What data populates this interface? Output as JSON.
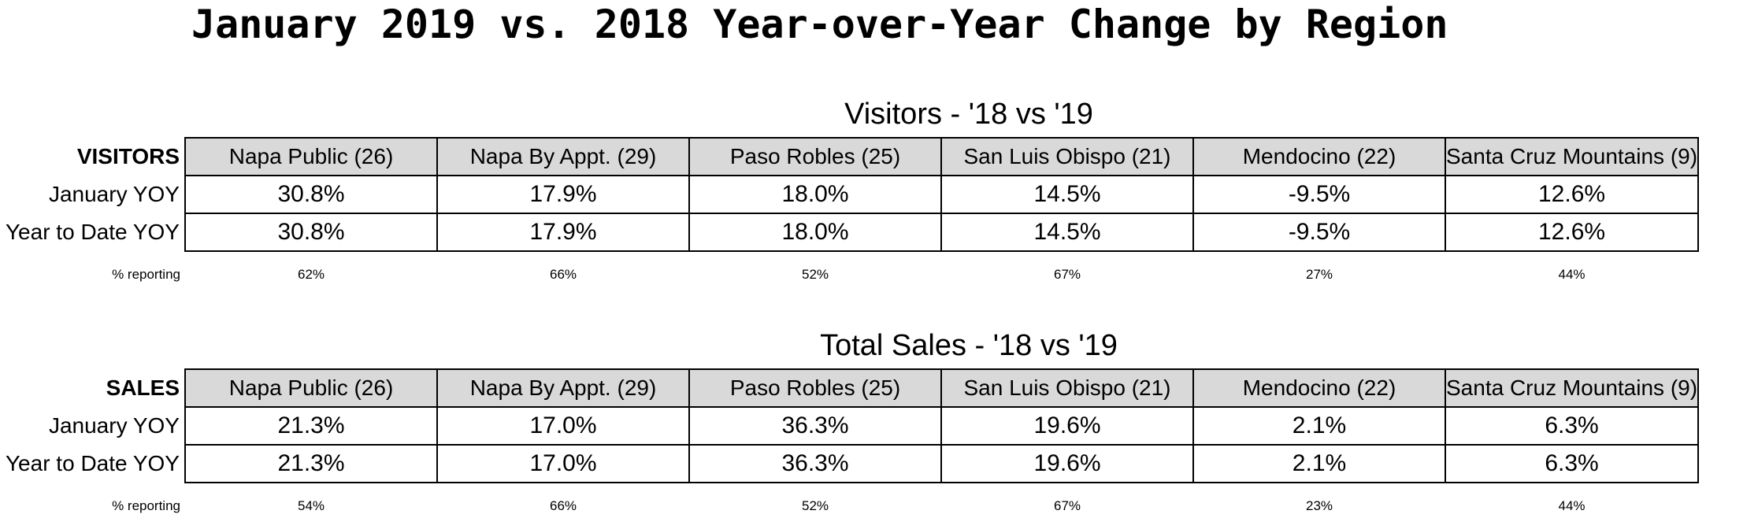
{
  "title": "January 2019 vs. 2018 Year-over-Year Change by Region",
  "regions": [
    "Napa Public (26)",
    "Napa By Appt. (29)",
    "Paso Robles (25)",
    "San Luis Obispo (21)",
    "Mendocino (22)",
    "Santa Cruz Mountains (9)"
  ],
  "visitors": {
    "section_title": "Visitors - '18 vs '19",
    "corner_label": "VISITORS",
    "rows": [
      {
        "label": "January YOY",
        "values": [
          "30.8%",
          "17.9%",
          "18.0%",
          "14.5%",
          "-9.5%",
          "12.6%"
        ]
      },
      {
        "label": "Year to Date YOY",
        "values": [
          "30.8%",
          "17.9%",
          "18.0%",
          "14.5%",
          "-9.5%",
          "12.6%"
        ]
      }
    ],
    "reporting_label": "% reporting",
    "reporting": [
      "62%",
      "66%",
      "52%",
      "67%",
      "27%",
      "44%"
    ]
  },
  "sales": {
    "section_title": "Total Sales - '18 vs '19",
    "corner_label": "SALES",
    "rows": [
      {
        "label": "January YOY",
        "values": [
          "21.3%",
          "17.0%",
          "36.3%",
          "19.6%",
          "2.1%",
          "6.3%"
        ]
      },
      {
        "label": "Year to Date YOY",
        "values": [
          "21.3%",
          "17.0%",
          "36.3%",
          "19.6%",
          "2.1%",
          "6.3%"
        ]
      }
    ],
    "reporting_label": "% reporting",
    "reporting": [
      "54%",
      "66%",
      "52%",
      "67%",
      "23%",
      "44%"
    ]
  },
  "colors": {
    "header_fill": "#d9d9d9",
    "border": "#000000"
  }
}
